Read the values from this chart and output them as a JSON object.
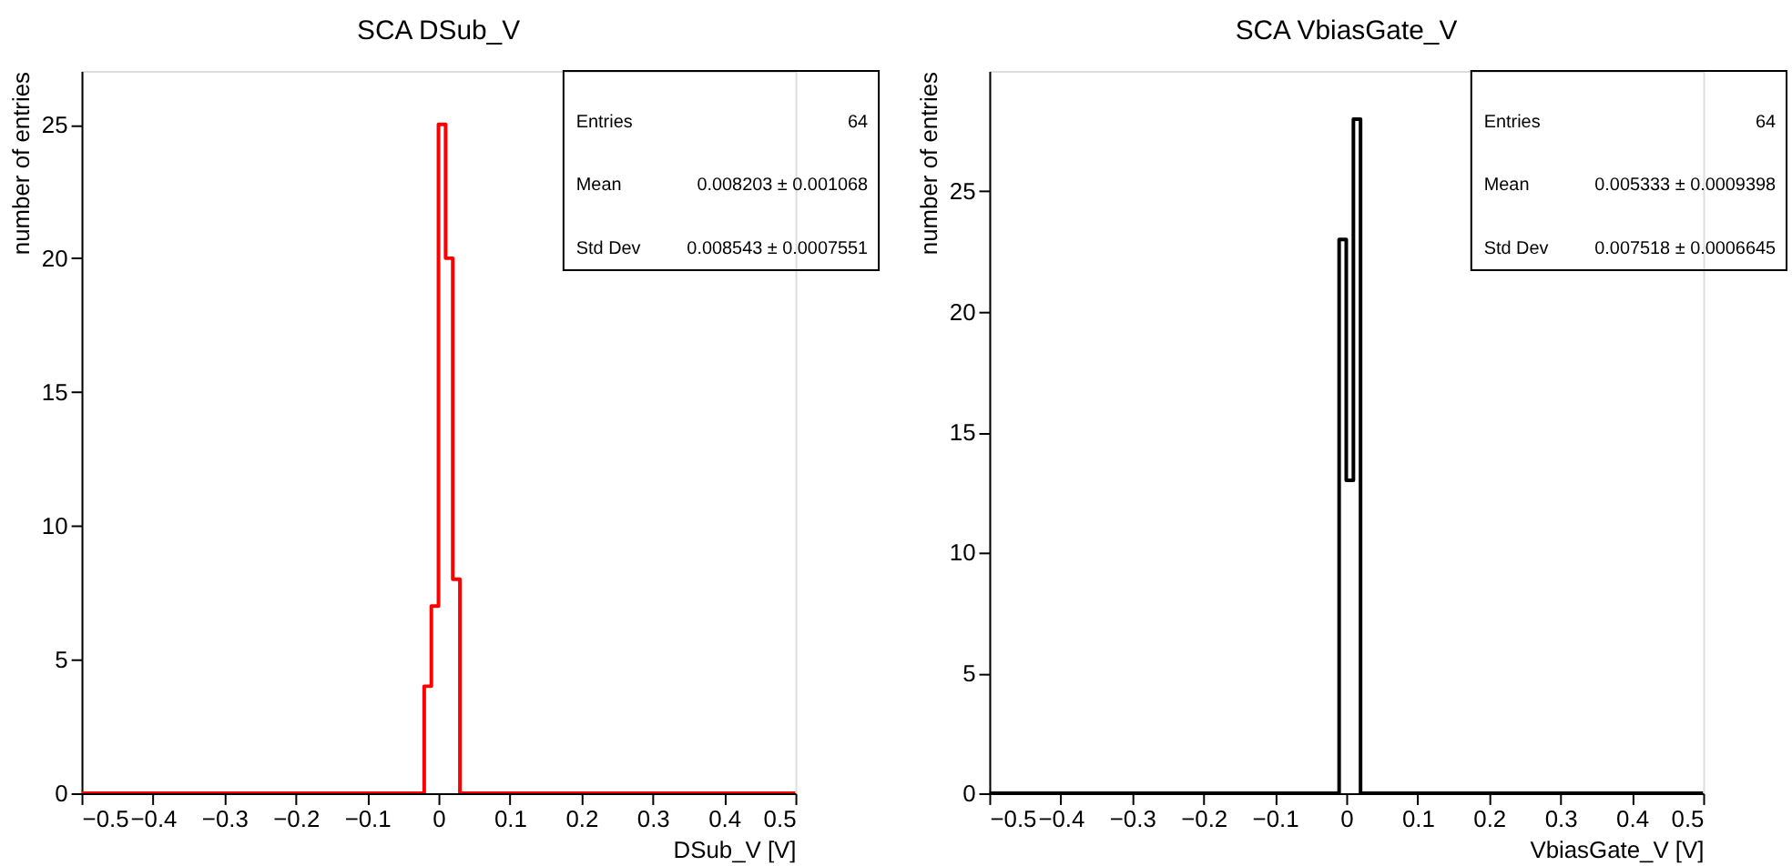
{
  "chart_data": [
    {
      "type": "histogram",
      "title": "SCA DSub_V",
      "xlabel": "DSub_V [V]",
      "ylabel": "number of entries",
      "color": "#ff0000",
      "bins": [
        -0.5,
        -0.49,
        -0.48,
        -0.47,
        -0.46,
        -0.45,
        -0.44,
        -0.43,
        -0.42,
        -0.41,
        -0.4,
        -0.39,
        -0.38,
        -0.37,
        -0.36,
        -0.35,
        -0.34,
        -0.33,
        -0.32,
        -0.31,
        -0.3,
        -0.29,
        -0.28,
        -0.27,
        -0.26,
        -0.25,
        -0.24,
        -0.23,
        -0.22,
        -0.21,
        -0.2,
        -0.19,
        -0.18,
        -0.17,
        -0.16,
        -0.15,
        -0.14,
        -0.13,
        -0.12,
        -0.11,
        -0.1,
        -0.09,
        -0.08,
        -0.07,
        -0.06,
        -0.05,
        -0.04,
        -0.03,
        -0.02,
        -0.01,
        0,
        0.01,
        0.02,
        0.03,
        0.04,
        0.05,
        0.06,
        0.07,
        0.08,
        0.09,
        0.1,
        0.11,
        0.12,
        0.13,
        0.14,
        0.15,
        0.16,
        0.17,
        0.18,
        0.19,
        0.2,
        0.21,
        0.22,
        0.23,
        0.24,
        0.25,
        0.26,
        0.27,
        0.28,
        0.29,
        0.3,
        0.31,
        0.32,
        0.33,
        0.34,
        0.35,
        0.36,
        0.37,
        0.38,
        0.39,
        0.4,
        0.41,
        0.42,
        0.43,
        0.44,
        0.45,
        0.46,
        0.47,
        0.48,
        0.49,
        0.5
      ],
      "values": [
        0,
        0,
        0,
        0,
        0,
        0,
        0,
        0,
        0,
        0,
        0,
        0,
        0,
        0,
        0,
        0,
        0,
        0,
        0,
        0,
        0,
        0,
        0,
        0,
        0,
        0,
        0,
        0,
        0,
        0,
        0,
        0,
        0,
        0,
        0,
        0,
        0,
        0,
        0,
        0,
        0,
        0,
        0,
        0,
        0,
        0,
        0,
        0,
        4,
        7,
        25,
        20,
        8,
        0,
        0,
        0,
        0,
        0,
        0,
        0,
        0,
        0,
        0,
        0,
        0,
        0,
        0,
        0,
        0,
        0,
        0,
        0,
        0,
        0,
        0,
        0,
        0,
        0,
        0,
        0,
        0,
        0,
        0,
        0,
        0,
        0,
        0,
        0,
        0,
        0,
        0,
        0,
        0,
        0,
        0,
        0,
        0,
        0,
        0,
        0
      ],
      "xlim": [
        -0.5,
        0.5
      ],
      "xticks": [
        -0.5,
        -0.4,
        -0.3,
        -0.2,
        -0.1,
        0,
        0.1,
        0.2,
        0.3,
        0.4,
        0.5
      ],
      "ylim": [
        0,
        27
      ],
      "yticks": [
        0,
        5,
        10,
        15,
        20,
        25
      ],
      "annotations": [
        "Entries",
        "64",
        "Mean",
        "0.008203 ± 0.001068",
        "Std Dev",
        "0.008543 ± 0.0007551"
      ]
    },
    {
      "type": "histogram",
      "title": "SCA VbiasGate_V",
      "xlabel": "VbiasGate_V [V]",
      "ylabel": "number of entries",
      "color": "#000000",
      "bins": [
        -0.5,
        -0.49,
        -0.48,
        -0.47,
        -0.46,
        -0.45,
        -0.44,
        -0.43,
        -0.42,
        -0.41,
        -0.4,
        -0.39,
        -0.38,
        -0.37,
        -0.36,
        -0.35,
        -0.34,
        -0.33,
        -0.32,
        -0.31,
        -0.3,
        -0.29,
        -0.28,
        -0.27,
        -0.26,
        -0.25,
        -0.24,
        -0.23,
        -0.22,
        -0.21,
        -0.2,
        -0.19,
        -0.18,
        -0.17,
        -0.16,
        -0.15,
        -0.14,
        -0.13,
        -0.12,
        -0.11,
        -0.1,
        -0.09,
        -0.08,
        -0.07,
        -0.06,
        -0.05,
        -0.04,
        -0.03,
        -0.02,
        -0.01,
        0,
        0.01,
        0.02,
        0.03,
        0.04,
        0.05,
        0.06,
        0.07,
        0.08,
        0.09,
        0.1,
        0.11,
        0.12,
        0.13,
        0.14,
        0.15,
        0.16,
        0.17,
        0.18,
        0.19,
        0.2,
        0.21,
        0.22,
        0.23,
        0.24,
        0.25,
        0.26,
        0.27,
        0.28,
        0.29,
        0.3,
        0.31,
        0.32,
        0.33,
        0.34,
        0.35,
        0.36,
        0.37,
        0.38,
        0.39,
        0.4,
        0.41,
        0.42,
        0.43,
        0.44,
        0.45,
        0.46,
        0.47,
        0.48,
        0.49,
        0.5
      ],
      "values": [
        0,
        0,
        0,
        0,
        0,
        0,
        0,
        0,
        0,
        0,
        0,
        0,
        0,
        0,
        0,
        0,
        0,
        0,
        0,
        0,
        0,
        0,
        0,
        0,
        0,
        0,
        0,
        0,
        0,
        0,
        0,
        0,
        0,
        0,
        0,
        0,
        0,
        0,
        0,
        0,
        0,
        0,
        0,
        0,
        0,
        0,
        0,
        0,
        0,
        23,
        13,
        28,
        0,
        0,
        0,
        0,
        0,
        0,
        0,
        0,
        0,
        0,
        0,
        0,
        0,
        0,
        0,
        0,
        0,
        0,
        0,
        0,
        0,
        0,
        0,
        0,
        0,
        0,
        0,
        0,
        0,
        0,
        0,
        0,
        0,
        0,
        0,
        0,
        0,
        0,
        0,
        0,
        0,
        0,
        0,
        0,
        0,
        0,
        0,
        0
      ],
      "xlim": [
        -0.5,
        0.5
      ],
      "xticks": [
        -0.5,
        -0.4,
        -0.3,
        -0.2,
        -0.1,
        0,
        0.1,
        0.2,
        0.3,
        0.4,
        0.5
      ],
      "ylim": [
        0,
        30
      ],
      "yticks": [
        0,
        5,
        10,
        15,
        20,
        25
      ],
      "annotations": [
        "Entries",
        "64",
        "Mean",
        "0.005333 ± 0.0009398",
        "Std Dev",
        "0.007518 ± 0.0006645"
      ]
    }
  ]
}
